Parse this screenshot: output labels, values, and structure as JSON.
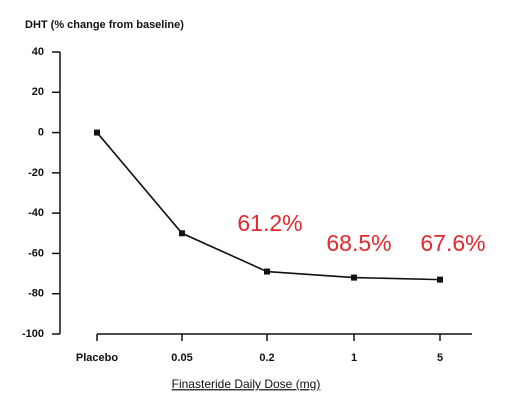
{
  "chart_data": {
    "type": "line",
    "ylabel": "DHT (% change from baseline)",
    "xlabel": "Finasteride Daily Dose (mg)",
    "categories": [
      "Placebo",
      "0.05",
      "0.2",
      "1",
      "5"
    ],
    "series": [
      {
        "color": "#111111",
        "values": [
          0,
          -50,
          -69,
          -72,
          -73
        ]
      }
    ],
    "ylim": [
      -100,
      40
    ],
    "yticks": [
      40,
      20,
      0,
      -20,
      -40,
      -60,
      -80,
      -100
    ],
    "annotations": [
      "61.2%",
      "68.5%",
      "67.6%"
    ],
    "annotation_color": "#e0282e"
  }
}
